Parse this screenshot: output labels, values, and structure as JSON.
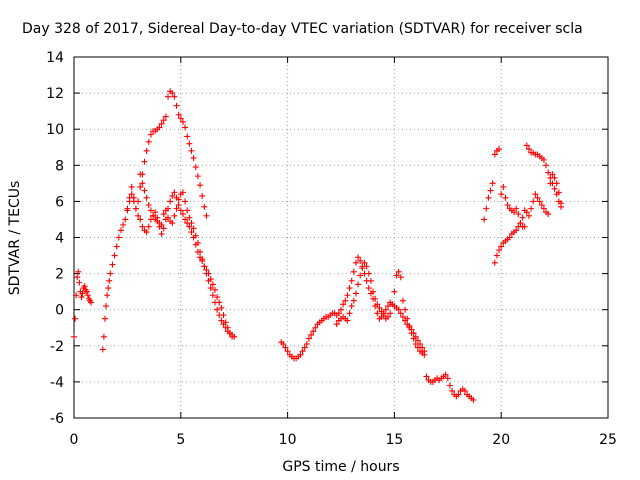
{
  "chart_data": {
    "type": "scatter",
    "title": "Day 328 of 2017, Sidereal Day-to-day VTEC variation (SDTVAR) for receiver scla",
    "xlabel": "GPS time / hours",
    "ylabel": "SDTVAR / TECUs",
    "xlim": [
      0,
      25
    ],
    "ylim": [
      -6,
      14
    ],
    "xticks": [
      0,
      5,
      10,
      15,
      20,
      25
    ],
    "yticks": [
      -6,
      -4,
      -2,
      0,
      2,
      4,
      6,
      8,
      10,
      12,
      14
    ],
    "grid": true,
    "marker": "+",
    "color": "#ff0000",
    "series": [
      {
        "name": "s1",
        "x": [
          0.0,
          0.05,
          0.1,
          0.15,
          0.2,
          0.25,
          0.3,
          0.35,
          0.4,
          0.45,
          0.5,
          0.55,
          0.6,
          0.65,
          0.7,
          0.75,
          0.8
        ],
        "y": [
          -1.5,
          -0.5,
          0.8,
          1.8,
          2.1,
          1.5,
          1.0,
          0.7,
          0.9,
          1.2,
          1.3,
          1.1,
          1.0,
          0.8,
          0.6,
          0.5,
          0.4
        ]
      },
      {
        "name": "s2",
        "x": [
          1.35,
          1.4,
          1.45,
          1.5,
          1.55,
          1.6,
          1.65,
          1.7,
          1.8,
          1.9,
          2.0,
          2.1,
          2.2,
          2.3,
          2.4,
          2.5,
          2.6,
          2.7,
          2.8,
          2.9,
          3.0,
          3.1,
          3.2,
          3.3,
          3.4,
          3.5,
          3.6,
          3.7,
          3.8,
          3.9,
          4.0,
          4.1,
          4.2,
          4.3,
          4.4,
          4.5,
          4.6,
          4.7,
          4.8,
          4.9,
          5.0,
          5.1,
          5.2,
          5.3,
          5.4,
          5.5,
          5.6,
          5.7,
          5.8,
          5.9,
          6.0,
          6.1,
          6.2
        ],
        "y": [
          -2.2,
          -1.5,
          -0.5,
          0.2,
          0.8,
          1.2,
          1.6,
          2.0,
          2.5,
          3.0,
          3.5,
          4.0,
          4.4,
          4.7,
          5.0,
          5.5,
          6.0,
          6.4,
          6.0,
          5.6,
          6.0,
          6.8,
          7.5,
          8.2,
          8.8,
          9.3,
          9.7,
          9.9,
          9.9,
          10.0,
          10.1,
          10.3,
          10.5,
          10.7,
          11.8,
          12.1,
          12.0,
          11.8,
          11.3,
          10.8,
          10.6,
          10.4,
          10.1,
          9.6,
          9.2,
          8.8,
          8.4,
          7.9,
          7.4,
          6.9,
          6.3,
          5.7,
          5.2
        ]
      },
      {
        "name": "s3",
        "x": [
          2.5,
          2.6,
          2.7,
          2.8,
          2.9,
          3.0,
          3.1,
          3.2,
          3.3,
          3.4,
          3.5,
          3.6,
          3.7,
          3.8,
          3.9,
          4.0,
          4.1,
          4.2,
          4.3,
          4.4,
          4.5,
          4.6,
          4.7,
          4.8,
          4.9,
          5.0,
          5.1,
          5.2,
          5.3,
          5.4,
          5.5,
          5.6,
          5.7,
          5.8,
          5.9,
          6.0,
          6.1,
          6.2,
          6.3,
          6.4,
          6.5,
          6.6,
          6.7,
          6.8,
          6.9,
          7.0,
          7.1,
          7.2,
          7.3,
          7.4
        ],
        "y": [
          5.6,
          6.2,
          6.8,
          6.2,
          5.6,
          5.2,
          5.0,
          4.6,
          4.4,
          4.3,
          4.6,
          5.0,
          5.2,
          5.4,
          5.1,
          4.6,
          4.2,
          4.5,
          5.0,
          5.6,
          6.0,
          6.3,
          6.5,
          6.2,
          5.8,
          5.5,
          5.3,
          5.0,
          4.8,
          4.6,
          4.3,
          4.0,
          3.6,
          3.2,
          2.9,
          2.7,
          2.4,
          2.2,
          2.0,
          1.7,
          1.4,
          1.1,
          0.7,
          0.4,
          0.1,
          -0.3,
          -0.7,
          -1.0,
          -1.3,
          -1.5
        ]
      },
      {
        "name": "s4",
        "x": [
          3.1,
          3.2,
          3.3,
          3.4,
          3.5,
          3.6,
          3.7,
          3.8,
          3.9,
          4.0,
          4.1,
          4.2,
          4.3,
          4.4,
          4.5,
          4.6,
          4.7,
          4.8,
          4.9,
          5.0,
          5.1,
          5.2,
          5.3,
          5.4,
          5.5,
          5.6,
          5.7,
          5.8,
          5.9,
          6.0,
          6.1,
          6.2,
          6.3,
          6.4,
          6.5,
          6.6,
          6.7,
          6.8,
          6.9,
          7.0,
          7.1,
          7.2,
          7.3,
          7.4,
          7.5
        ],
        "y": [
          7.5,
          7.0,
          6.6,
          6.2,
          5.8,
          5.5,
          5.2,
          5.0,
          4.9,
          4.8,
          4.7,
          5.3,
          5.5,
          5.1,
          4.9,
          4.8,
          5.2,
          5.6,
          6.1,
          6.4,
          6.5,
          6.0,
          5.5,
          5.1,
          4.8,
          4.5,
          4.1,
          3.7,
          3.2,
          2.8,
          2.4,
          2.0,
          1.6,
          1.2,
          0.8,
          0.4,
          0.0,
          -0.3,
          -0.6,
          -0.8,
          -1.0,
          -1.2,
          -1.3,
          -1.4,
          -1.5
        ]
      },
      {
        "name": "s5",
        "x": [
          9.7,
          9.8,
          9.9,
          10.0,
          10.1,
          10.2,
          10.3,
          10.4,
          10.5,
          10.6,
          10.7,
          10.8,
          10.9,
          11.0,
          11.1,
          11.2,
          11.3,
          11.4,
          11.5,
          11.6,
          11.7,
          11.8,
          11.9,
          12.0,
          12.1,
          12.2,
          12.3,
          12.4,
          12.5,
          12.6,
          12.7,
          12.8,
          12.9,
          13.0,
          13.1,
          13.2,
          13.3,
          13.4,
          13.5,
          13.6,
          13.7,
          13.8,
          13.9,
          14.0,
          14.1,
          14.2,
          14.3,
          14.4,
          14.5,
          14.6,
          14.7,
          14.8,
          14.9,
          15.0,
          15.1,
          15.2,
          15.3,
          15.4,
          15.5,
          15.6,
          15.7,
          15.8,
          15.9,
          16.0,
          16.1,
          16.2,
          16.3,
          16.4
        ],
        "y": [
          -1.8,
          -1.9,
          -2.1,
          -2.3,
          -2.5,
          -2.6,
          -2.7,
          -2.7,
          -2.6,
          -2.5,
          -2.3,
          -2.1,
          -1.9,
          -1.6,
          -1.4,
          -1.2,
          -1.0,
          -0.8,
          -0.7,
          -0.6,
          -0.5,
          -0.4,
          -0.4,
          -0.3,
          -0.2,
          -0.2,
          -0.3,
          -0.2,
          0.0,
          0.3,
          0.5,
          0.8,
          1.2,
          1.6,
          2.1,
          2.6,
          2.9,
          2.7,
          2.4,
          2.0,
          1.6,
          1.2,
          0.9,
          0.6,
          0.2,
          -0.2,
          -0.5,
          -0.4,
          -0.2,
          0.0,
          0.2,
          0.4,
          0.3,
          0.2,
          0.1,
          0.0,
          -0.2,
          -0.4,
          -0.6,
          -0.8,
          -1.0,
          -1.3,
          -1.6,
          -1.9,
          -2.1,
          -2.3,
          -2.4,
          -2.5
        ]
      },
      {
        "name": "s6",
        "x": [
          12.3,
          12.4,
          12.5,
          12.6,
          12.7,
          12.8,
          12.9,
          13.0,
          13.1,
          13.2,
          13.3,
          13.4,
          13.5,
          13.6,
          13.7,
          13.8,
          13.9,
          14.0,
          14.1,
          14.2,
          14.3,
          14.4,
          14.5,
          14.6,
          14.7,
          14.8,
          14.9,
          15.0,
          15.1,
          15.2,
          15.3,
          15.4,
          15.5,
          15.6,
          15.7,
          15.8,
          15.9,
          16.0,
          16.1,
          16.2,
          16.3,
          16.4
        ],
        "y": [
          -0.8,
          -0.6,
          -0.5,
          -0.4,
          -0.5,
          -0.6,
          -0.2,
          0.2,
          0.5,
          0.9,
          1.4,
          1.9,
          2.3,
          2.6,
          2.4,
          2.0,
          1.6,
          1.0,
          0.6,
          0.3,
          0.1,
          -0.1,
          -0.3,
          -0.5,
          -0.4,
          -0.2,
          0.3,
          1.0,
          1.9,
          2.1,
          1.8,
          0.5,
          0.0,
          -0.5,
          -0.9,
          -1.1,
          -1.3,
          -1.5,
          -1.7,
          -1.9,
          -2.1,
          -2.3
        ]
      },
      {
        "name": "s7",
        "x": [
          16.5,
          16.6,
          16.7,
          16.8,
          16.9,
          17.0,
          17.1,
          17.2,
          17.3,
          17.4,
          17.5,
          17.6,
          17.7,
          17.8,
          17.9,
          18.0,
          18.1,
          18.2,
          18.3,
          18.4,
          18.5,
          18.6,
          18.7
        ],
        "y": [
          -3.7,
          -3.9,
          -4.0,
          -4.0,
          -3.9,
          -3.8,
          -3.9,
          -3.8,
          -3.7,
          -3.6,
          -3.8,
          -4.2,
          -4.5,
          -4.7,
          -4.8,
          -4.7,
          -4.5,
          -4.4,
          -4.5,
          -4.7,
          -4.8,
          -4.9,
          -5.0
        ]
      },
      {
        "name": "s8",
        "x": [
          19.2,
          19.3,
          19.4,
          19.5,
          19.6,
          19.7,
          19.8,
          19.9,
          20.0,
          20.1,
          20.2,
          20.3,
          20.4,
          20.5,
          20.6,
          20.7,
          20.8,
          20.9,
          21.0,
          21.1,
          21.2,
          21.3,
          21.4,
          21.5,
          21.6,
          21.7,
          21.8,
          21.9,
          22.0,
          22.1,
          22.2,
          22.3,
          22.4,
          22.5,
          22.6,
          22.7,
          22.8
        ],
        "y": [
          5.0,
          5.6,
          6.2,
          6.6,
          7.0,
          8.6,
          8.8,
          8.9,
          6.4,
          6.8,
          6.2,
          5.8,
          5.6,
          5.5,
          5.4,
          5.6,
          5.3,
          4.8,
          4.6,
          4.6,
          9.1,
          8.9,
          8.7,
          8.7,
          8.6,
          8.6,
          8.5,
          8.4,
          8.3,
          8.0,
          7.6,
          7.3,
          7.0,
          6.7,
          6.4,
          6.0,
          5.7
        ]
      },
      {
        "name": "s9",
        "x": [
          19.7,
          19.8,
          19.9,
          20.0,
          20.1,
          20.2,
          20.3,
          20.4,
          20.5,
          20.6,
          20.7,
          20.8,
          20.9,
          21.0,
          21.1,
          21.2,
          21.3,
          21.4,
          21.5,
          21.6,
          21.7,
          21.8,
          21.9,
          22.0,
          22.1,
          22.2,
          22.3,
          22.4,
          22.5,
          22.6,
          22.7,
          22.8
        ],
        "y": [
          2.6,
          3.0,
          3.3,
          3.5,
          3.7,
          3.8,
          3.9,
          4.0,
          4.2,
          4.3,
          4.4,
          4.6,
          4.8,
          5.1,
          5.5,
          5.4,
          5.2,
          5.6,
          6.0,
          6.4,
          6.2,
          6.0,
          5.8,
          5.6,
          5.4,
          5.3,
          7.0,
          7.5,
          7.3,
          7.0,
          6.5,
          5.9
        ]
      }
    ]
  }
}
